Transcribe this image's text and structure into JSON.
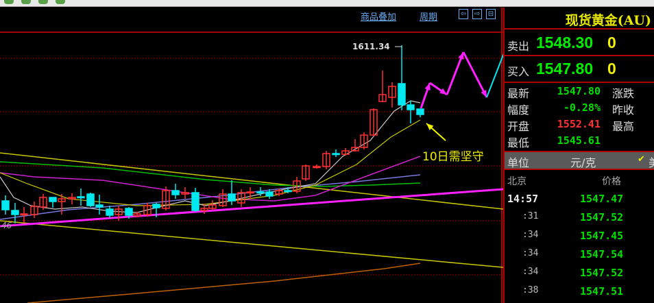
{
  "toolbar": {
    "overlay_label": "商品叠加",
    "period_label": "周期",
    "nav_icons": [
      "arrow-left-icon",
      "arrow-right-icon",
      "layout-icon"
    ]
  },
  "chart": {
    "high_label": "1611.34",
    "left_label": "46",
    "annotation": "10日需坚守",
    "colors": {
      "up": "#ff3030",
      "down": "#00e8f0",
      "ma5": "#c8c8c8",
      "ma10": "#c8c800",
      "ma20": "#d020d0",
      "ma30": "#7878e0",
      "ma60": "#00c000",
      "trend": "#ff20ff",
      "grid": "#a00000"
    }
  },
  "quote": {
    "title": "现货黄金(AU)",
    "sell_label": "卖出",
    "sell_price": "1548.30",
    "sell_vol": "0",
    "buy_label": "买入",
    "buy_price": "1547.80",
    "buy_vol": "0",
    "stats": [
      {
        "label": "最新",
        "value": "1547.80",
        "color": "#00e000",
        "label2": "涨跌"
      },
      {
        "label": "幅度",
        "value": "-0.28%",
        "color": "#00e000",
        "label2": "昨收"
      },
      {
        "label": "开盘",
        "value": "1552.41",
        "color": "#ff3030",
        "label2": "最高"
      },
      {
        "label": "最低",
        "value": "1545.61",
        "color": "#00e000",
        "label2": ""
      }
    ],
    "unit_label": "单位",
    "unit_value": "元/克",
    "unit_check": "✔",
    "unit_extra": "美",
    "ticks_header": {
      "time": "北京",
      "price": "价格"
    },
    "ticks": [
      {
        "time": "14:57",
        "price": "1547.47"
      },
      {
        "time": ":31",
        "price": "1547.52"
      },
      {
        "time": ":34",
        "price": "1547.45"
      },
      {
        "time": ":34",
        "price": "1547.54"
      },
      {
        "time": ":34",
        "price": "1547.52"
      },
      {
        "time": ":38",
        "price": "1547.51"
      }
    ]
  }
}
